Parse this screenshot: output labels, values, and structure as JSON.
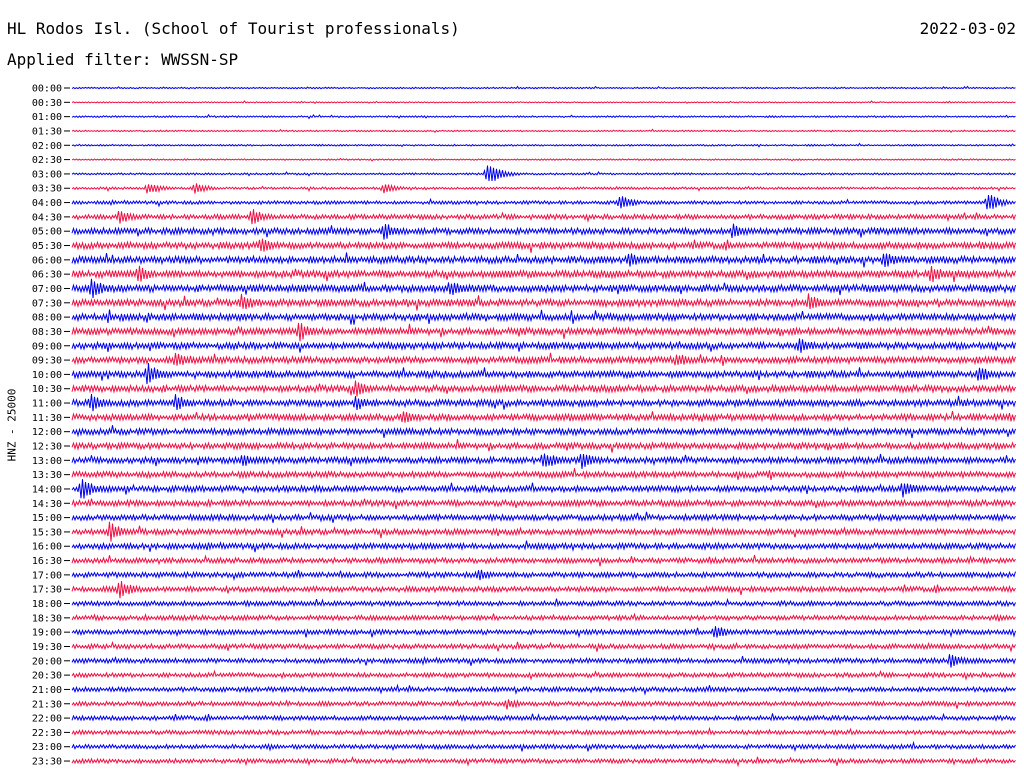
{
  "header": {
    "station": "HL Rodos Isl. (School of Tourist professionals)",
    "date": "2022-03-02",
    "filter": "Applied filter: WWSSN-SP"
  },
  "colors": {
    "even_trace": "#0000ee",
    "odd_trace": "#ee1144",
    "frame": "#000000"
  },
  "chart_data": {
    "type": "line",
    "title": "HL Rodos Isl. (School of Tourist professionals)",
    "date": "2022-03-02",
    "filter": "WWSSN-SP",
    "ylabel": "HNZ - 25000",
    "xlabel": "",
    "grid": false,
    "tick_labels": [
      "00:00",
      "00:30",
      "01:00",
      "01:30",
      "02:00",
      "02:30",
      "03:00",
      "03:30",
      "04:00",
      "04:30",
      "05:00",
      "05:30",
      "06:00",
      "06:30",
      "07:00",
      "07:30",
      "08:00",
      "08:30",
      "09:00",
      "09:30",
      "10:00",
      "10:30",
      "11:00",
      "11:30",
      "12:00",
      "12:30",
      "13:00",
      "13:30",
      "14:00",
      "14:30",
      "15:00",
      "15:30",
      "16:00",
      "16:30",
      "17:00",
      "17:30",
      "18:00",
      "18:30",
      "19:00",
      "19:30",
      "20:00",
      "20:30",
      "21:00",
      "21:30",
      "22:00",
      "22:30",
      "23:00",
      "23:30"
    ],
    "noise_amplitude": [
      0.6,
      0.5,
      0.7,
      0.6,
      0.7,
      0.6,
      0.8,
      1.0,
      1.4,
      2.0,
      2.6,
      2.8,
      3.0,
      3.0,
      3.0,
      3.0,
      2.9,
      2.9,
      2.8,
      2.8,
      2.8,
      2.8,
      2.8,
      2.7,
      2.6,
      2.6,
      2.6,
      2.5,
      2.5,
      2.5,
      2.4,
      2.4,
      2.4,
      2.2,
      2.2,
      2.2,
      2.0,
      2.0,
      2.0,
      2.0,
      2.0,
      1.9,
      1.9,
      1.9,
      1.9,
      1.8,
      1.8,
      1.8
    ],
    "events": [
      {
        "trace": 6,
        "x": 0.44,
        "amp": 12
      },
      {
        "trace": 7,
        "x": 0.08,
        "amp": 7
      },
      {
        "trace": 7,
        "x": 0.13,
        "amp": 6
      },
      {
        "trace": 7,
        "x": 0.33,
        "amp": 6
      },
      {
        "trace": 8,
        "x": 0.58,
        "amp": 8
      },
      {
        "trace": 8,
        "x": 0.97,
        "amp": 10
      },
      {
        "trace": 9,
        "x": 0.05,
        "amp": 8
      },
      {
        "trace": 9,
        "x": 0.19,
        "amp": 9
      },
      {
        "trace": 10,
        "x": 0.33,
        "amp": 10
      },
      {
        "trace": 10,
        "x": 0.7,
        "amp": 9
      },
      {
        "trace": 11,
        "x": 0.2,
        "amp": 9
      },
      {
        "trace": 12,
        "x": 0.59,
        "amp": 8
      },
      {
        "trace": 12,
        "x": 0.86,
        "amp": 9
      },
      {
        "trace": 13,
        "x": 0.07,
        "amp": 10
      },
      {
        "trace": 13,
        "x": 0.91,
        "amp": 10
      },
      {
        "trace": 14,
        "x": 0.02,
        "amp": 11
      },
      {
        "trace": 14,
        "x": 0.4,
        "amp": 9
      },
      {
        "trace": 15,
        "x": 0.18,
        "amp": 10
      },
      {
        "trace": 15,
        "x": 0.78,
        "amp": 10
      },
      {
        "trace": 17,
        "x": 0.24,
        "amp": 11
      },
      {
        "trace": 18,
        "x": 0.77,
        "amp": 9
      },
      {
        "trace": 19,
        "x": 0.11,
        "amp": 9
      },
      {
        "trace": 19,
        "x": 0.64,
        "amp": 8
      },
      {
        "trace": 20,
        "x": 0.08,
        "amp": 12
      },
      {
        "trace": 20,
        "x": 0.96,
        "amp": 10
      },
      {
        "trace": 21,
        "x": 0.3,
        "amp": 9
      },
      {
        "trace": 22,
        "x": 0.02,
        "amp": 10
      },
      {
        "trace": 22,
        "x": 0.11,
        "amp": 10
      },
      {
        "trace": 22,
        "x": 0.3,
        "amp": 8
      },
      {
        "trace": 23,
        "x": 0.35,
        "amp": 8
      },
      {
        "trace": 26,
        "x": 0.18,
        "amp": 8
      },
      {
        "trace": 26,
        "x": 0.5,
        "amp": 10
      },
      {
        "trace": 26,
        "x": 0.54,
        "amp": 9
      },
      {
        "trace": 28,
        "x": 0.01,
        "amp": 12
      },
      {
        "trace": 28,
        "x": 0.88,
        "amp": 10
      },
      {
        "trace": 31,
        "x": 0.04,
        "amp": 11
      },
      {
        "trace": 34,
        "x": 0.43,
        "amp": 7
      },
      {
        "trace": 35,
        "x": 0.05,
        "amp": 10
      },
      {
        "trace": 38,
        "x": 0.68,
        "amp": 8
      },
      {
        "trace": 40,
        "x": 0.93,
        "amp": 8
      },
      {
        "trace": 43,
        "x": 0.46,
        "amp": 6
      }
    ]
  }
}
